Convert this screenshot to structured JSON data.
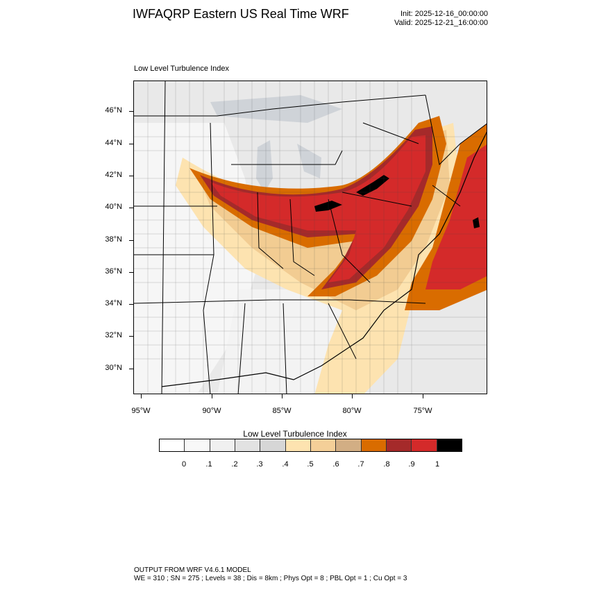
{
  "header": {
    "title": "IWFAQRP Eastern US Real Time WRF",
    "init": "Init: 2025-12-16_00:00:00",
    "valid": "Valid: 2025-12-21_16:00:00"
  },
  "map": {
    "label": "Low Level Turbulence Index",
    "lat_labels": [
      "46°N",
      "44°N",
      "42°N",
      "40°N",
      "38°N",
      "36°N",
      "34°N",
      "32°N",
      "30°N"
    ],
    "lon_labels": [
      "95°W",
      "90°W",
      "85°W",
      "80°W",
      "75°W"
    ],
    "colors": {
      "background": "#e9e9e9",
      "ocean": "#dcdcdc",
      "band_light": "#fde3b0",
      "band_tan": "#f2cc92",
      "band_brown": "#d2ae84",
      "band_orange": "#d96c00",
      "band_darkred": "#a52a2a",
      "band_red": "#d42a2a",
      "band_black": "#000000"
    }
  },
  "colorbar": {
    "title": "Low Level Turbulence Index",
    "labels": [
      "0",
      ".1",
      ".2",
      ".3",
      ".4",
      ".5",
      ".6",
      ".7",
      ".8",
      ".9",
      "1"
    ],
    "colors": [
      "#ffffff",
      "#f8f8f8",
      "#f0f0f0",
      "#e2e2e2",
      "#d6d6d6",
      "#fde3b0",
      "#f4cf98",
      "#d2ae84",
      "#d96c00",
      "#a52a2a",
      "#d42a2a",
      "#000000"
    ]
  },
  "footer": {
    "line1": "OUTPUT FROM WRF V4.6.1 MODEL",
    "line2": "WE = 310 ; SN = 275 ; Levels = 38 ; Dis = 8km ; Phys Opt = 8 ; PBL Opt = 1 ; Cu Opt = 3"
  }
}
